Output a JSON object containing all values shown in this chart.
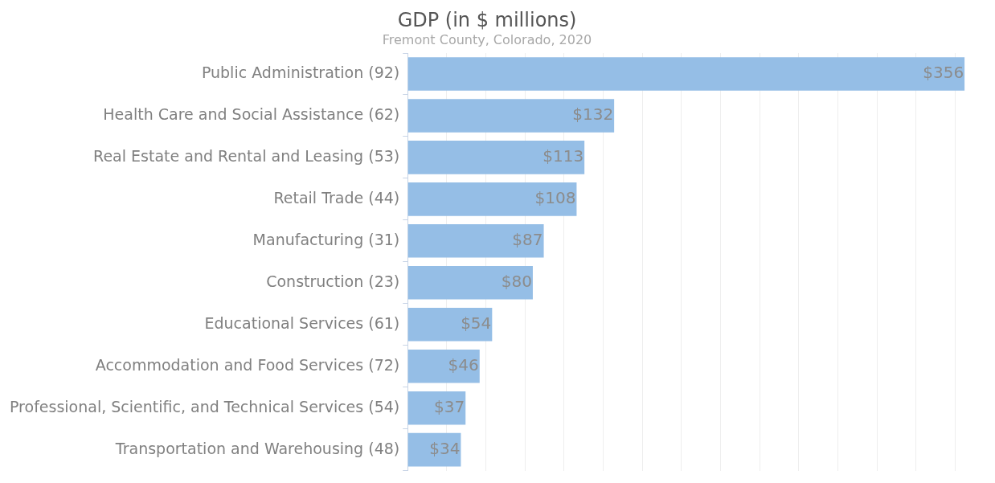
{
  "chart_data": {
    "type": "bar",
    "orientation": "horizontal",
    "title": "GDP (in $ millions)",
    "subtitle": "Fremont County, Colorado, 2020",
    "categories": [
      "Public Administration (92)",
      "Health Care and Social Assistance (62)",
      "Real Estate and Rental and Leasing (53)",
      "Retail Trade (44)",
      "Manufacturing (31)",
      "Construction (23)",
      "Educational Services (61)",
      "Accommodation and Food Services (72)",
      "Professional, Scientific, and Technical Services (54)",
      "Transportation and Warehousing (48)"
    ],
    "values": [
      356,
      132,
      113,
      108,
      87,
      80,
      54,
      46,
      37,
      34
    ],
    "value_labels": [
      "$356",
      "$132",
      "$113",
      "$108",
      "$87",
      "$80",
      "$54",
      "$46",
      "$37",
      "$34"
    ],
    "color": "#95bee6",
    "xlim": [
      0,
      358
    ],
    "xticks": [
      {
        "value": 0,
        "label": null
      },
      {
        "value": 25,
        "label": null
      },
      {
        "value": 50,
        "label": null
      },
      {
        "value": 75,
        "label": null
      },
      {
        "value": 100,
        "label": null
      },
      {
        "value": 125,
        "label": null
      },
      {
        "value": 150,
        "label": null
      },
      {
        "value": 175,
        "label": null
      },
      {
        "value": 200,
        "label": null
      },
      {
        "value": 225,
        "label": null
      },
      {
        "value": 250,
        "label": null
      },
      {
        "value": 275,
        "label": null
      },
      {
        "value": 300,
        "label": null
      },
      {
        "value": 325,
        "label": null
      },
      {
        "value": 350,
        "label": null
      }
    ],
    "grid": "x",
    "tick_labels": "y",
    "legend": false
  }
}
